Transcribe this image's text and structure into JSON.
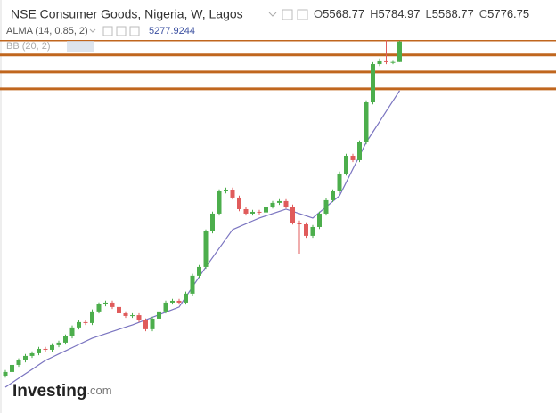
{
  "chart_data": {
    "type": "candlestick",
    "title": "NSE Consumer Goods, Nigeria, W, Lagos",
    "ohlc_labels": [
      "O",
      "H",
      "L",
      "C"
    ],
    "up_color": "#4cae4c",
    "down_color": "#e05b5b",
    "ylim": [
      2000,
      6200
    ],
    "ohlc": [
      [
        2380,
        2437,
        2360,
        2417
      ],
      [
        2417,
        2509,
        2397,
        2489
      ],
      [
        2489,
        2555,
        2469,
        2535
      ],
      [
        2535,
        2600,
        2515,
        2580
      ],
      [
        2580,
        2627,
        2560,
        2607
      ],
      [
        2607,
        2672,
        2587,
        2652
      ],
      [
        2652,
        2672,
        2623,
        2643
      ],
      [
        2643,
        2709,
        2623,
        2689
      ],
      [
        2689,
        2736,
        2669,
        2716
      ],
      [
        2716,
        2799,
        2696,
        2779
      ],
      [
        2779,
        2890,
        2759,
        2870
      ],
      [
        2870,
        2944,
        2850,
        2924
      ],
      [
        2924,
        2944,
        2895,
        2915
      ],
      [
        2915,
        3053,
        2895,
        3033
      ],
      [
        3033,
        3125,
        3013,
        3105
      ],
      [
        3105,
        3143,
        3085,
        3123
      ],
      [
        3123,
        3143,
        3058,
        3078
      ],
      [
        3078,
        3098,
        2994,
        3014
      ],
      [
        3014,
        3034,
        2967,
        2987
      ],
      [
        2987,
        3015,
        2967,
        2995
      ],
      [
        2995,
        3015,
        2922,
        2942
      ],
      [
        2942,
        2962,
        2832,
        2852
      ],
      [
        2852,
        2980,
        2832,
        2960
      ],
      [
        2960,
        3053,
        2940,
        3033
      ],
      [
        3033,
        3143,
        3013,
        3123
      ],
      [
        3123,
        3161,
        3103,
        3141
      ],
      [
        3141,
        3161,
        3103,
        3123
      ],
      [
        3123,
        3234,
        3103,
        3214
      ],
      [
        3214,
        3415,
        3194,
        3395
      ],
      [
        3395,
        3505,
        3375,
        3485
      ],
      [
        3485,
        3867,
        3465,
        3847
      ],
      [
        3847,
        4048,
        3827,
        4028
      ],
      [
        4028,
        4274,
        4008,
        4254
      ],
      [
        4254,
        4292,
        4234,
        4272
      ],
      [
        4272,
        4292,
        4171,
        4191
      ],
      [
        4191,
        4211,
        4053,
        4073
      ],
      [
        4073,
        4093,
        4008,
        4028
      ],
      [
        4028,
        4066,
        4008,
        4046
      ],
      [
        4046,
        4066,
        4020,
        4040
      ],
      [
        4040,
        4120,
        4020,
        4100
      ],
      [
        4100,
        4157,
        4080,
        4137
      ],
      [
        4137,
        4175,
        4117,
        4155
      ],
      [
        4155,
        4175,
        4080,
        4100
      ],
      [
        4100,
        4120,
        3917,
        3937
      ],
      [
        3937,
        3957,
        3620,
        3919
      ],
      [
        3919,
        3939,
        3782,
        3802
      ],
      [
        3802,
        3912,
        3782,
        3892
      ],
      [
        3892,
        4048,
        3872,
        4028
      ],
      [
        4028,
        4184,
        4008,
        4164
      ],
      [
        4164,
        4274,
        4144,
        4254
      ],
      [
        4254,
        4455,
        4234,
        4435
      ],
      [
        4435,
        4636,
        4415,
        4616
      ],
      [
        4616,
        4636,
        4551,
        4571
      ],
      [
        4571,
        4772,
        4551,
        4752
      ],
      [
        4752,
        5179,
        4732,
        5159
      ],
      [
        5159,
        5568,
        5139,
        5548
      ],
      [
        5548,
        5605,
        5528,
        5585
      ],
      [
        5585,
        5793,
        5547,
        5567
      ],
      [
        5567,
        5589,
        5547,
        5569
      ],
      [
        5568.77,
        5784.97,
        5568.77,
        5776.75
      ]
    ],
    "alma": {
      "name": "ALMA (14, 0.85, 2)",
      "color": "#7a74c0",
      "values": [
        2263,
        2308,
        2354,
        2399,
        2444,
        2490,
        2535,
        2567,
        2600,
        2632,
        2664,
        2697,
        2729,
        2761,
        2784,
        2806,
        2829,
        2851,
        2874,
        2896,
        2922,
        2948,
        2974,
        3000,
        3026,
        3052,
        3078,
        3180,
        3282,
        3383,
        3485,
        3580,
        3675,
        3770,
        3865,
        3895,
        3924,
        3954,
        3983,
        4006,
        4028,
        4051,
        4073,
        4051,
        4028,
        4006,
        3983,
        4040,
        4096,
        4153,
        4209,
        4345,
        4481,
        4616,
        4752,
        4858,
        4963,
        5069,
        5173,
        5277.9244
      ]
    },
    "bb_name": "BB (20, 2)",
    "hlines": {
      "color": "#c0661e",
      "values": [
        5786,
        5641,
        5468,
        5296
      ]
    },
    "logo": [
      "Investing",
      ".com"
    ]
  }
}
